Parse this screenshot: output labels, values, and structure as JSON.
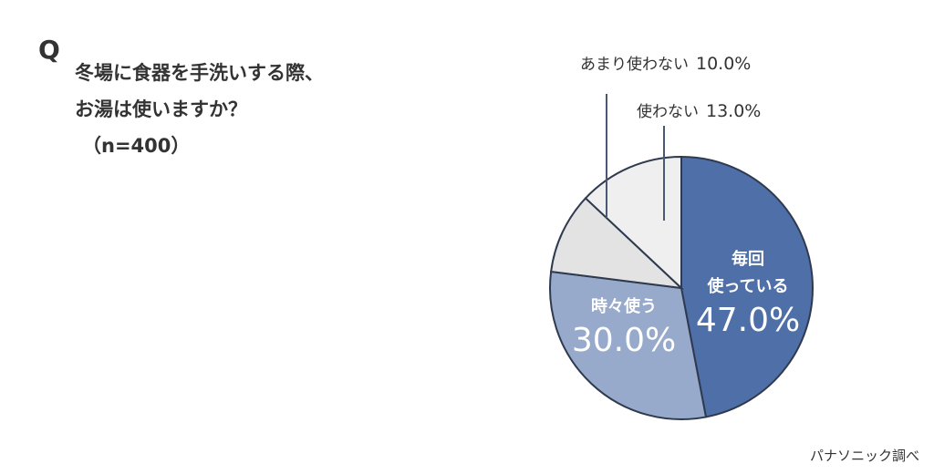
{
  "question": {
    "mark": "Q",
    "line1": "冬場に食器を手洗いする際、",
    "line2": "お湯は使いますか？",
    "sample": "（n=400）"
  },
  "labels": {
    "rarely": {
      "text": "あまり使わない",
      "pct": "10.0%"
    },
    "never": {
      "text": "使わない",
      "pct": "13.0%"
    },
    "always": {
      "line1": "毎回",
      "line2": "使っている",
      "pct": "47.0%"
    },
    "sometimes": {
      "text": "時々使う",
      "pct": "30.0%"
    }
  },
  "source": "パナソニック調べ",
  "colors": {
    "always": "#4f6fa8",
    "sometimes": "#97aacb",
    "rarely": "#e3e3e3",
    "never": "#efefef",
    "outline": "#2f3a4f"
  },
  "chart_data": {
    "type": "pie",
    "title": "冬場に食器を手洗いする際、お湯は使いますか？（n=400）",
    "categories": [
      "毎回使っている",
      "時々使う",
      "あまり使わない",
      "使わない"
    ],
    "values": [
      47.0,
      30.0,
      10.0,
      13.0
    ],
    "unit": "%",
    "start_angle": "12 o'clock, clockwise",
    "source": "パナソニック調べ"
  }
}
